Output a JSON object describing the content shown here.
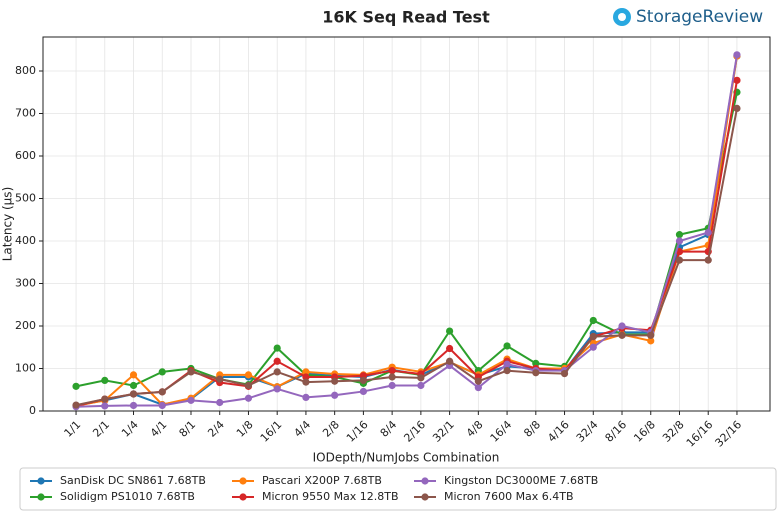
{
  "chart_data": {
    "type": "line",
    "title": "16K Seq Read Test",
    "logo": "StorageReview",
    "x_label": "IODepth/NumJobs Combination",
    "y_label": "Latency (µs)",
    "categories": [
      "1/1",
      "2/1",
      "1/4",
      "4/1",
      "8/1",
      "2/4",
      "1/8",
      "16/1",
      "4/4",
      "2/8",
      "1/16",
      "8/4",
      "2/16",
      "32/1",
      "4/8",
      "16/4",
      "8/8",
      "4/16",
      "32/4",
      "8/16",
      "16/8",
      "32/8",
      "16/16",
      "32/16"
    ],
    "ylim": [
      0,
      880
    ],
    "yticks": [
      0,
      100,
      200,
      300,
      400,
      500,
      600,
      700,
      800
    ],
    "grid": true,
    "legend": "bottom",
    "series": [
      {
        "name": "SanDisk DC SN861 7.68TB",
        "color": "#1f77b4",
        "values": [
          13,
          25,
          40,
          15,
          28,
          80,
          80,
          57,
          88,
          83,
          80,
          97,
          85,
          115,
          85,
          105,
          100,
          95,
          182,
          185,
          185,
          385,
          415,
          835
        ]
      },
      {
        "name": "Solidigm PS1010 7.68TB",
        "color": "#2ca02c",
        "values": [
          58,
          72,
          60,
          92,
          100,
          75,
          62,
          148,
          85,
          80,
          65,
          95,
          85,
          188,
          95,
          153,
          112,
          105,
          213,
          180,
          180,
          415,
          430,
          750
        ]
      },
      {
        "name": "Pascari X200P 7.68TB",
        "color": "#ff7f0e",
        "values": [
          12,
          25,
          85,
          15,
          30,
          85,
          85,
          57,
          92,
          87,
          85,
          103,
          92,
          115,
          85,
          122,
          100,
          100,
          160,
          180,
          165,
          375,
          390,
          835
        ]
      },
      {
        "name": "Micron 9550 Max 12.8TB",
        "color": "#d62728",
        "values": [
          12,
          28,
          40,
          45,
          95,
          67,
          58,
          117,
          80,
          80,
          83,
          95,
          87,
          147,
          80,
          117,
          100,
          95,
          175,
          195,
          190,
          375,
          375,
          778
        ]
      },
      {
        "name": "Kingston DC3000ME 7.68TB",
        "color": "#9467bd",
        "values": [
          10,
          12,
          13,
          13,
          25,
          20,
          30,
          52,
          32,
          37,
          46,
          60,
          60,
          107,
          55,
          110,
          95,
          95,
          150,
          200,
          185,
          400,
          420,
          838
        ]
      },
      {
        "name": "Micron 7600 Max 6.4TB",
        "color": "#8c564b",
        "values": [
          14,
          28,
          40,
          45,
          92,
          75,
          60,
          92,
          68,
          70,
          72,
          80,
          78,
          117,
          70,
          95,
          90,
          88,
          175,
          178,
          178,
          355,
          355,
          712
        ]
      }
    ]
  }
}
